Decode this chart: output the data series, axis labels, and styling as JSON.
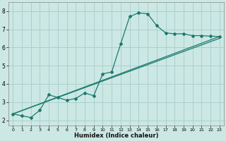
{
  "xlabel": "Humidex (Indice chaleur)",
  "ylabel": "",
  "bg_color": "#cce8e4",
  "grid_color": "#aad0cc",
  "line_color": "#1a7a6e",
  "xlim": [
    -0.5,
    23.5
  ],
  "ylim": [
    1.7,
    8.5
  ],
  "xticks": [
    0,
    1,
    2,
    3,
    4,
    5,
    6,
    7,
    8,
    9,
    10,
    11,
    12,
    13,
    14,
    15,
    16,
    17,
    18,
    19,
    20,
    21,
    22,
    23
  ],
  "yticks": [
    2,
    3,
    4,
    5,
    6,
    7,
    8
  ],
  "line1_x": [
    0,
    1,
    2,
    3,
    4,
    5,
    6,
    7,
    8,
    9,
    10,
    11,
    12,
    13,
    14,
    15,
    16,
    17,
    18,
    19,
    20,
    21,
    22,
    23
  ],
  "line1_y": [
    2.35,
    2.25,
    2.15,
    2.55,
    3.4,
    3.25,
    3.1,
    3.2,
    3.5,
    3.35,
    4.55,
    4.65,
    6.2,
    7.7,
    7.9,
    7.85,
    7.2,
    6.8,
    6.75,
    6.75,
    6.65,
    6.65,
    6.62,
    6.6
  ],
  "line2_x": [
    0,
    23
  ],
  "line2_y": [
    2.35,
    6.5
  ],
  "line3_x": [
    0,
    23
  ],
  "line3_y": [
    2.35,
    6.6
  ]
}
